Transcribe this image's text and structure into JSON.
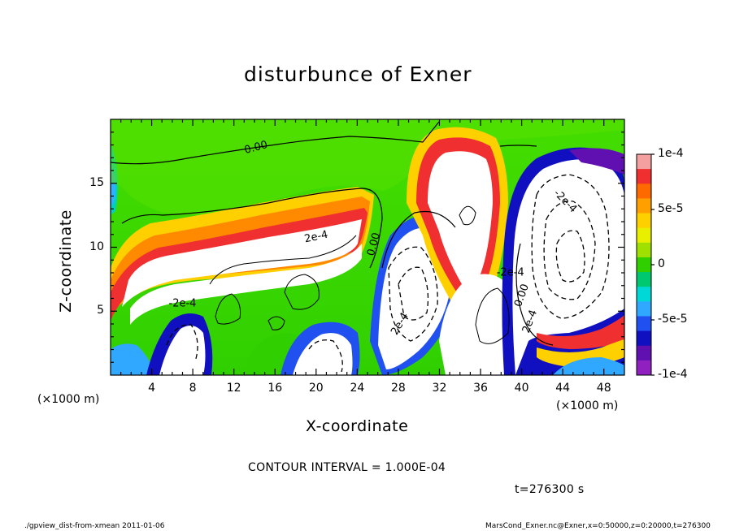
{
  "chart_data": {
    "type": "heatmap",
    "title": "disturbunce of Exner",
    "xlabel": "X-coordinate",
    "ylabel": "Z-coordinate",
    "x_unit": "(×1000 m)",
    "y_unit": "(×1000 m)",
    "xlim": [
      0,
      50
    ],
    "ylim": [
      0,
      20
    ],
    "x_ticks": [
      4,
      8,
      12,
      16,
      20,
      24,
      28,
      32,
      36,
      40,
      44,
      48
    ],
    "y_ticks": [
      5,
      10,
      15
    ],
    "colorbar": {
      "range": [
        -0.0001,
        0.0001
      ],
      "tick_labels": [
        "1e-4",
        "5e-5",
        "0",
        "-5e-5",
        "-1e-4"
      ],
      "tick_values": [
        0.0001,
        5e-05,
        0,
        -5e-05,
        -0.0001
      ],
      "colors": [
        "#f4a0a0",
        "#f03030",
        "#ff6a00",
        "#ffa000",
        "#ffd000",
        "#e8f000",
        "#a0e000",
        "#30d000",
        "#00c870",
        "#00d8d8",
        "#30a8ff",
        "#2050f0",
        "#1010c0",
        "#6010b0",
        "#9020c0"
      ]
    },
    "contour_labels": [
      "0.00",
      "2e-4",
      "0.00",
      "-2e-4",
      "0.00",
      "-2e-4",
      "2e-4",
      "2e-4",
      "-2e-4"
    ],
    "contour_interval": "CONTOUR INTERVAL = 1.000E-04",
    "time": "t=276300 s"
  },
  "footer": {
    "left": "./gpview_dist-from-xmean  2011-01-06",
    "right": "MarsCond_Exner.nc@Exner,x=0:50000,z=0:20000,t=276300"
  }
}
